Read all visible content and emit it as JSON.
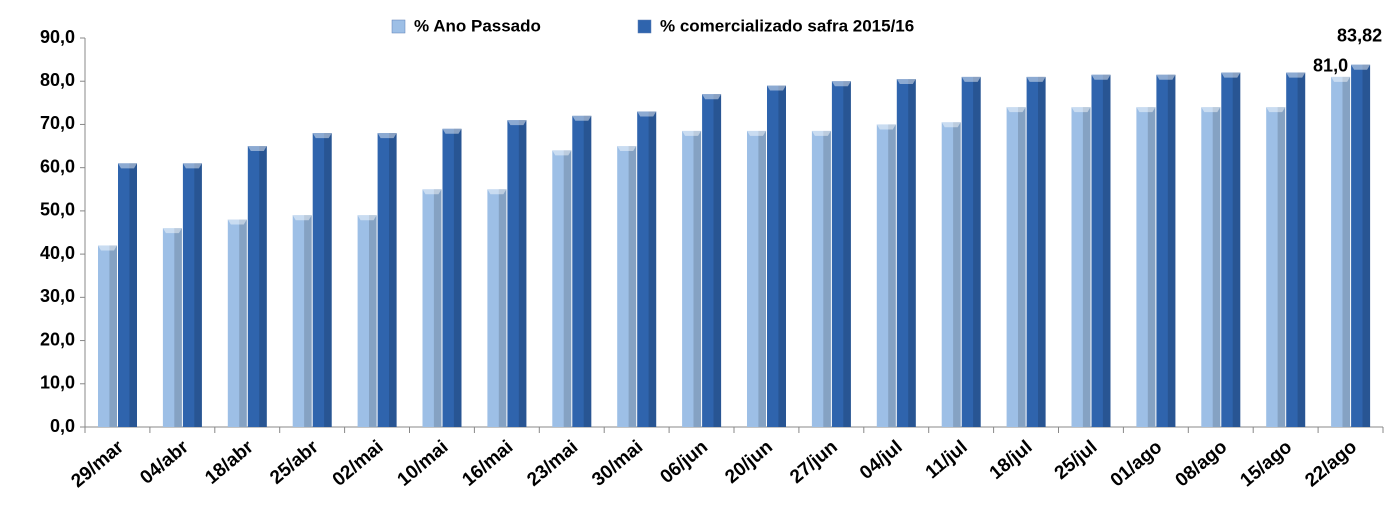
{
  "chart_data": {
    "type": "bar",
    "categories": [
      "29/mar",
      "04/abr",
      "18/abr",
      "25/abr",
      "02/mai",
      "10/mai",
      "16/mai",
      "23/mai",
      "30/mai",
      "06/jun",
      "20/jun",
      "27/jun",
      "04/jul",
      "11/jul",
      "18/jul",
      "25/jul",
      "01/ago",
      "08/ago",
      "15/ago",
      "22/ago"
    ],
    "series": [
      {
        "name": "% Ano Passado",
        "color": "#9dbfe6",
        "values": [
          42,
          46,
          48,
          49,
          49,
          55,
          55,
          64,
          65,
          68.5,
          68.5,
          68.5,
          70,
          70.5,
          74,
          74,
          74,
          74,
          74,
          81
        ],
        "value_labels": [
          null,
          null,
          null,
          null,
          null,
          null,
          null,
          null,
          null,
          null,
          null,
          null,
          null,
          null,
          null,
          null,
          null,
          null,
          null,
          "81,0"
        ]
      },
      {
        "name": "% comercializado safra 2015/16",
        "color": "#2f64ad",
        "values": [
          61,
          61,
          65,
          68,
          68,
          69,
          71,
          72,
          73,
          77,
          79,
          80,
          80.5,
          81,
          81,
          81.5,
          81.5,
          82,
          82,
          83.82
        ],
        "value_labels": [
          null,
          null,
          null,
          null,
          null,
          null,
          null,
          null,
          null,
          null,
          null,
          null,
          null,
          null,
          null,
          null,
          null,
          null,
          null,
          "83,82"
        ]
      }
    ],
    "ylim": [
      0,
      90
    ],
    "yticks": [
      {
        "value": 0,
        "label": "0,0"
      },
      {
        "value": 10,
        "label": "10,0"
      },
      {
        "value": 20,
        "label": "20,0"
      },
      {
        "value": 30,
        "label": "30,0"
      },
      {
        "value": 40,
        "label": "40,0"
      },
      {
        "value": 50,
        "label": "50,0"
      },
      {
        "value": 60,
        "label": "60,0"
      },
      {
        "value": 70,
        "label": "70,0"
      },
      {
        "value": 80,
        "label": "80,0"
      },
      {
        "value": 90,
        "label": "90,0"
      }
    ],
    "grid": false
  }
}
